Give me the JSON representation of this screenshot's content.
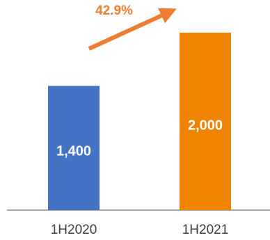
{
  "chart_data": {
    "type": "bar",
    "categories": [
      "1H2020",
      "1H2021"
    ],
    "values": [
      1400,
      2000
    ],
    "value_labels": [
      "1,400",
      "2,000"
    ],
    "colors": [
      "#4472C4",
      "#F08300"
    ],
    "ylim": [
      0,
      2100
    ],
    "grid": false,
    "legend": "none",
    "annotation": {
      "text": "42.9%",
      "color": "#ED7D31",
      "shape": "arrow-up-right"
    }
  }
}
